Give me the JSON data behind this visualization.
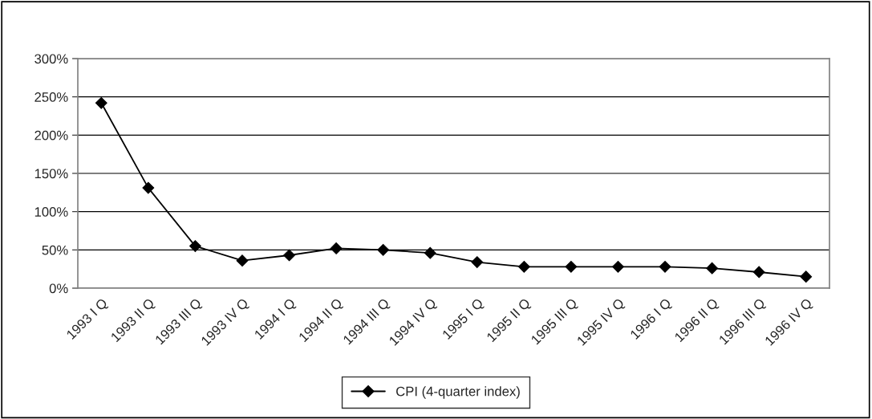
{
  "chart_data": {
    "type": "line",
    "categories": [
      "1993 I Q",
      "1993 II Q",
      "1993 III Q",
      "1993 IV Q",
      "1994 I Q",
      "1994 II Q",
      "1994 III Q",
      "1994 IV Q",
      "1995 I Q",
      "1995 II Q",
      "1995 III Q",
      "1995 IV Q",
      "1996 I Q",
      "1996 II Q",
      "1996 III Q",
      "1996 IV Q"
    ],
    "series": [
      {
        "name": "CPI (4-quarter index)",
        "color": "#000000",
        "values": [
          242,
          131,
          55,
          36,
          43,
          52,
          50,
          46,
          34,
          28,
          28,
          28,
          28,
          26,
          21,
          15
        ]
      }
    ],
    "ylim": [
      0,
      300
    ],
    "yticks": [
      {
        "value": 0,
        "label": "0%"
      },
      {
        "value": 50,
        "label": "50%"
      },
      {
        "value": 100,
        "label": "100%"
      },
      {
        "value": 150,
        "label": "150%"
      },
      {
        "value": 200,
        "label": "200%"
      },
      {
        "value": 250,
        "label": "250%"
      },
      {
        "value": 300,
        "label": "300%"
      }
    ],
    "grid": "y",
    "legend": "bottom",
    "marker": "diamond",
    "line_style": "solid"
  }
}
